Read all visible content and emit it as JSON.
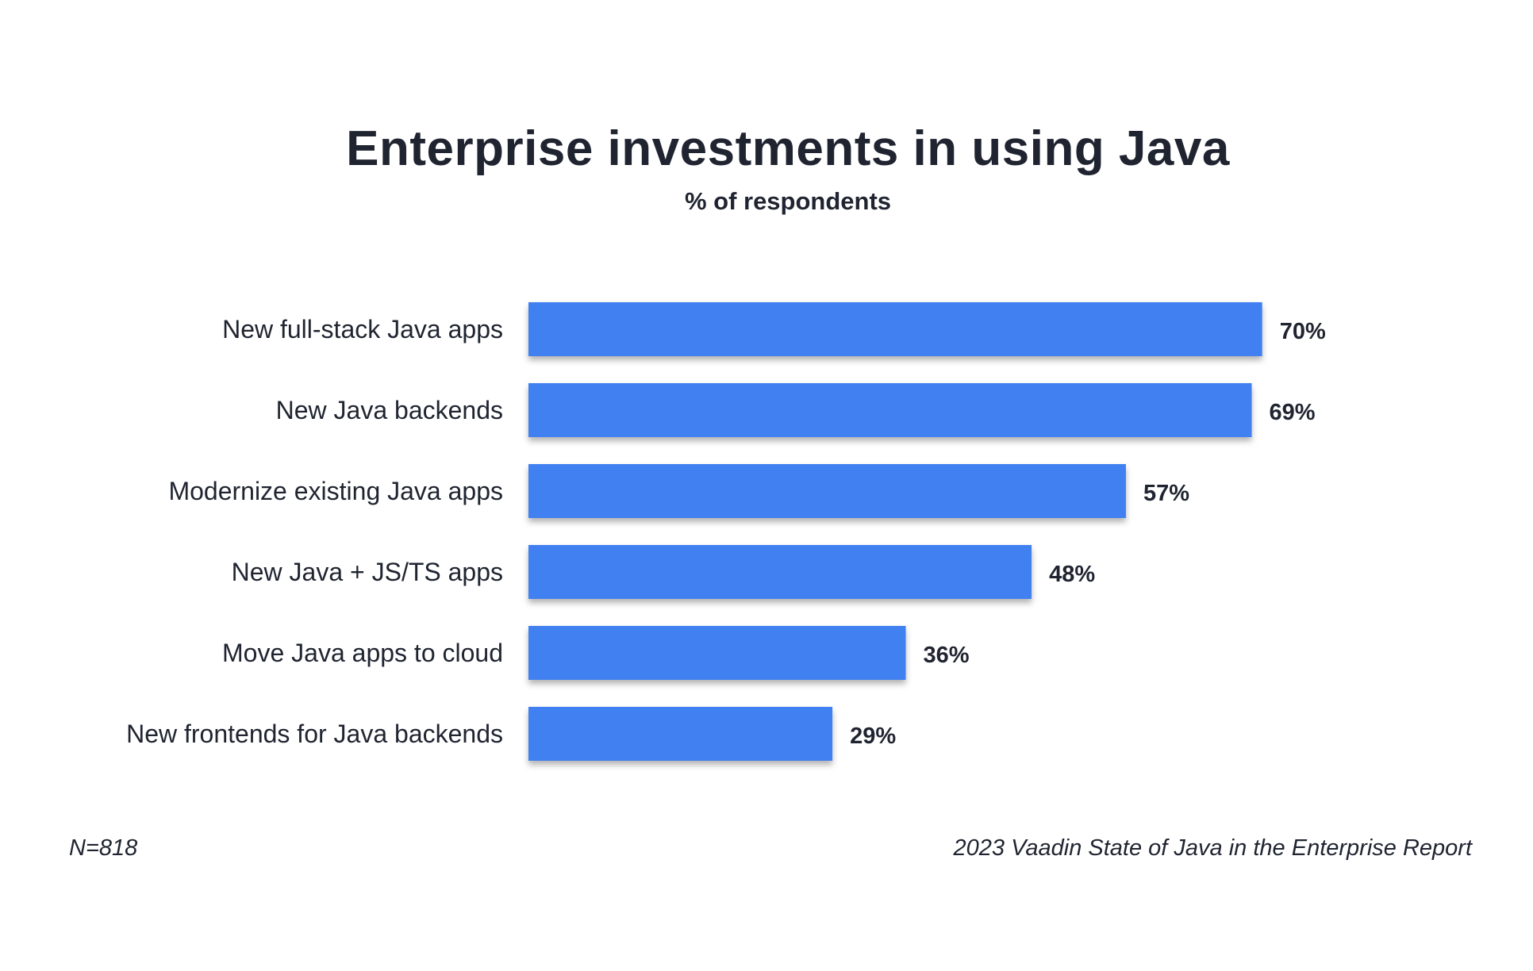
{
  "chart_data": {
    "type": "bar",
    "orientation": "horizontal",
    "title": "Enterprise investments in using Java",
    "subtitle": "% of respondents",
    "categories": [
      "New full-stack Java apps",
      "New Java backends",
      "Modernize existing Java apps",
      "New Java + JS/TS apps",
      "Move Java apps to cloud",
      "New frontends for Java backends"
    ],
    "values": [
      70,
      69,
      57,
      48,
      36,
      29
    ],
    "data_labels": [
      "70%",
      "69%",
      "57%",
      "48%",
      "36%",
      "29%"
    ],
    "unit": "%",
    "xlim": [
      0,
      100
    ],
    "grid": false,
    "bar_color": "#3f80f0"
  },
  "footer": {
    "left": "N=818",
    "right": "2023 Vaadin State of Java in the Enterprise Report"
  }
}
